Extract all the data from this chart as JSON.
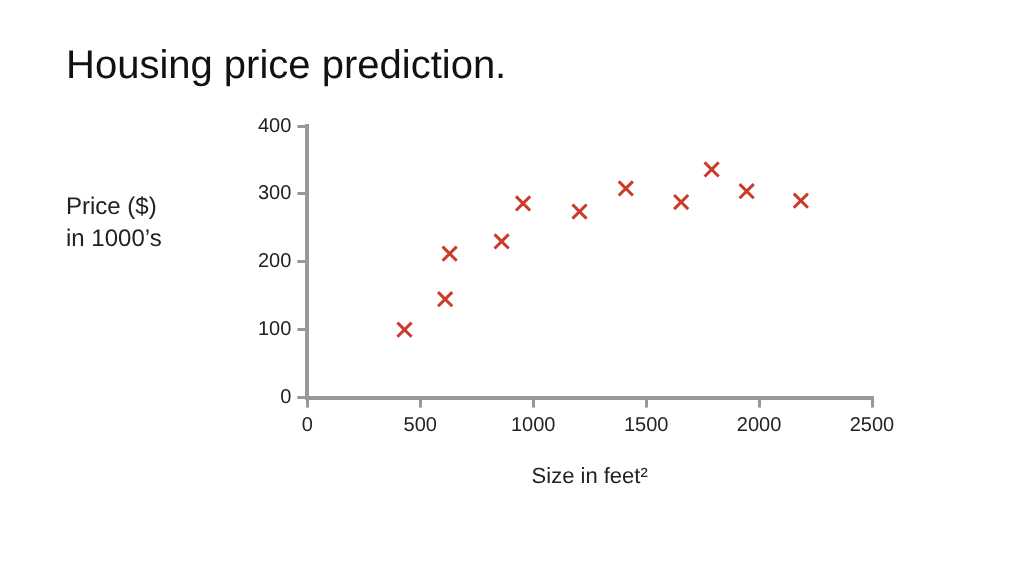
{
  "chart_data": {
    "type": "scatter",
    "title": "Housing price prediction.",
    "xlabel": "Size in feet²",
    "ylabel": "Price ($)\nin 1000’s",
    "x": [
      430,
      610,
      630,
      860,
      955,
      1205,
      1410,
      1655,
      1790,
      1945,
      2185
    ],
    "series": [
      {
        "color": "#cc3a2a",
        "values": [
          100,
          145,
          212,
          230,
          286,
          274,
          308,
          288,
          336,
          304,
          290
        ]
      }
    ],
    "xlim": [
      0,
      2500
    ],
    "xticks": [
      0,
      500,
      1000,
      1500,
      2000,
      2500
    ],
    "ylim": [
      0,
      400
    ],
    "yticks": [
      0,
      100,
      200,
      300,
      400
    ],
    "grid": false,
    "legend": false,
    "marker": "cross"
  }
}
